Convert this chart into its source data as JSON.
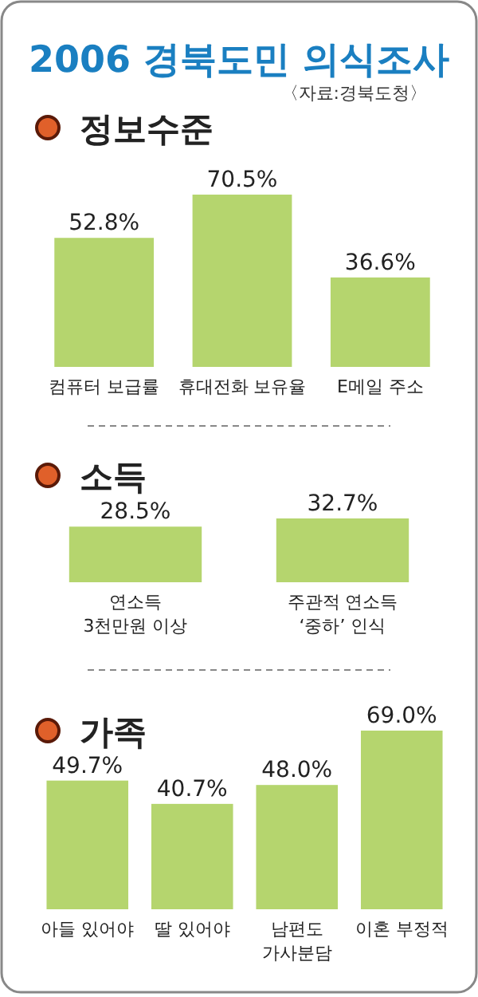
{
  "chart_data": [
    {
      "type": "other",
      "title": "2006 경북도민 의식조사",
      "annotations": [
        "〈자료:경북도청〉"
      ]
    },
    {
      "type": "bar",
      "title": "정보수준",
      "categories": [
        "컴퓨터 보급률",
        "휴대전화 보유율",
        "E메일 주소"
      ],
      "values": [
        52.8,
        70.5,
        36.6
      ],
      "value_labels": [
        "52.8%",
        "70.5%",
        "36.6%"
      ],
      "color": "#b5d56e",
      "tick_labels": "x"
    },
    {
      "type": "bar",
      "title": "소득",
      "categories": [
        "연소득\n3천만원 이상",
        "주관적 연소득\n‘중하’ 인식"
      ],
      "values": [
        28.5,
        32.7
      ],
      "value_labels": [
        "28.5%",
        "32.7%"
      ],
      "color": "#b5d56e",
      "tick_labels": "x"
    },
    {
      "type": "bar",
      "title": "가족",
      "categories": [
        "아들 있어야",
        "딸 있어야",
        "남편도\n가사분담",
        "이혼 부정적"
      ],
      "values": [
        49.7,
        40.7,
        48.0,
        69.0
      ],
      "value_labels": [
        "49.7%",
        "40.7%",
        "48.0%",
        "69.0%"
      ],
      "color": "#b5d56e",
      "tick_labels": "x"
    }
  ]
}
